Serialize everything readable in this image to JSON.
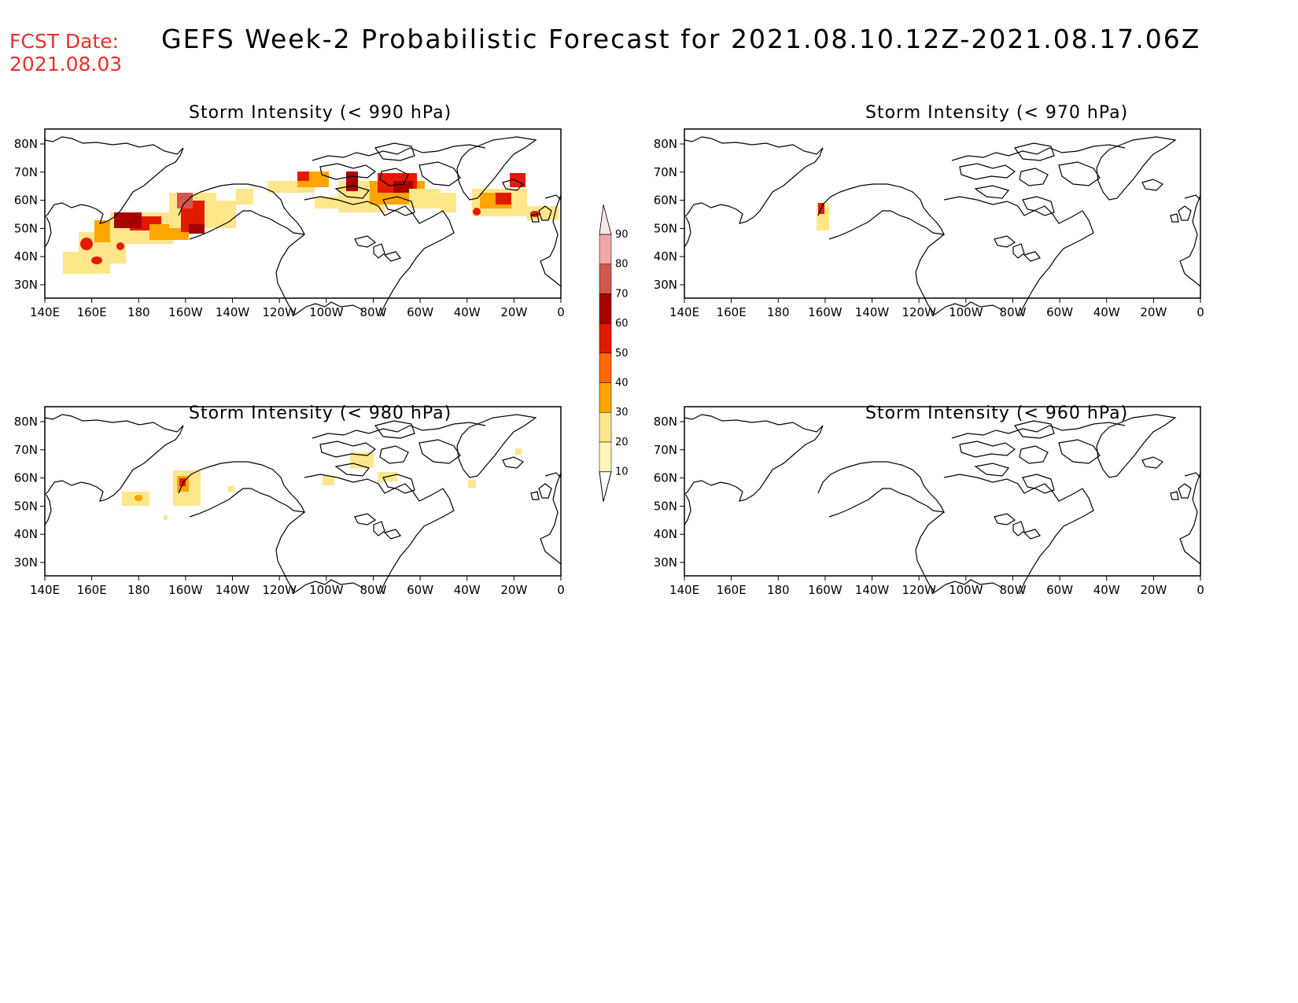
{
  "header": {
    "fcst_label": "FCST Date:",
    "fcst_date": "2021.08.03",
    "title": "GEFS Week-2 Probabilistic Forecast for 2021.08.10.12Z-2021.08.17.06Z"
  },
  "axes": {
    "lon_labels": [
      "140E",
      "160E",
      "180",
      "160W",
      "140W",
      "120W",
      "100W",
      "80W",
      "60W",
      "40W",
      "20W",
      "0"
    ],
    "lat_labels": [
      "80N",
      "70N",
      "60N",
      "50N",
      "40N",
      "30N"
    ]
  },
  "panels": [
    {
      "id": "p990",
      "title": "Storm Intensity (< 990 hPa)"
    },
    {
      "id": "p970",
      "title": "Storm Intensity (< 970 hPa)"
    },
    {
      "id": "p980",
      "title": "Storm Intensity (< 980 hPa)"
    },
    {
      "id": "p960",
      "title": "Storm Intensity (< 960 hPa)"
    }
  ],
  "colorbar": {
    "levels": [
      "10",
      "20",
      "30",
      "40",
      "50",
      "60",
      "70",
      "80",
      "90"
    ],
    "colors": [
      "#fff6b8",
      "#ffe68a",
      "#ffa500",
      "#ff6a00",
      "#e41a00",
      "#a80000",
      "#d2584e",
      "#f2a8a8",
      "#fde6e6"
    ]
  },
  "colors": {
    "p10": "#fff6b8",
    "p20": "#ffe68a",
    "p30": "#ffa500",
    "p40": "#ff6a00",
    "p50": "#e41a00",
    "p60": "#a80000",
    "p70": "#d2584e",
    "p80": "#f2a8a8"
  }
}
